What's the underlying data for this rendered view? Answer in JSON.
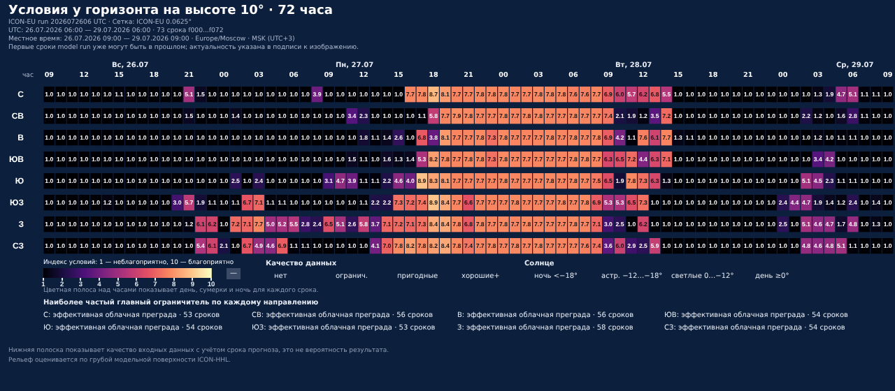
{
  "chart_data": {
    "type": "heatmap",
    "title": "Условия у горизонта на высоте 10° · 72 часа",
    "subtitle": [
      "ICON-EU run 2026072606 UTC · Сетка: ICON-EU 0.0625°",
      "UTC: 26.07.2026 06:00 — 29.07.2026 06:00 · 73 срока f000...f072",
      "Местное время: 26.07.2026 09:00 — 29.07.2026 09:00 · Europe/Moscow · MSK (UTC+3)",
      "Первые сроки model run уже могут быть в прошлом; актуальность указана в подписи к изображению."
    ],
    "xlabel": "час",
    "categories": [
      "09",
      null,
      null,
      "12",
      null,
      null,
      "15",
      null,
      null,
      "18",
      null,
      null,
      "21",
      null,
      null,
      "00",
      null,
      null,
      "03",
      null,
      null,
      "06",
      null,
      null,
      "09",
      null,
      null,
      "12",
      null,
      null,
      "15",
      null,
      null,
      "18",
      null,
      null,
      "21",
      null,
      null,
      "00",
      null,
      null,
      "03",
      null,
      null,
      "06",
      null,
      null,
      "09",
      null,
      null,
      "12",
      null,
      null,
      "15",
      null,
      null,
      "18",
      null,
      null,
      "21",
      null,
      null,
      "00",
      null,
      null,
      "03",
      null,
      null,
      "06",
      null,
      null,
      "09"
    ],
    "y_categories": [
      "С",
      "СВ",
      "В",
      "ЮВ",
      "Ю",
      "ЮЗ",
      "З",
      "СЗ"
    ],
    "cells": [
      [
        1.0,
        1.0,
        1.0,
        1.0,
        1.0,
        1.0,
        1.1,
        1.0,
        1.0,
        1.0,
        1.0,
        1.0,
        5.1,
        1.5,
        1.0,
        1.0,
        1.0,
        1.0,
        1.0,
        1.0,
        1.0,
        1.0,
        1.0,
        3.9,
        1.0,
        1.0,
        1.0,
        1.0,
        1.0,
        1.0,
        1.0,
        7.7,
        7.8,
        8.7,
        8.1,
        7.7,
        7.7,
        7.8,
        7.8,
        7.8,
        7.7,
        7.7,
        7.8,
        7.8,
        7.8,
        7.6,
        7.6,
        7.7,
        6.9,
        6.0,
        5.7,
        6.2,
        6.8,
        5.5,
        1.0,
        1.0,
        1.0,
        1.0,
        1.0,
        1.0,
        1.0,
        1.0,
        1.0,
        1.0,
        1.0,
        1.0,
        1.3,
        1.9,
        4.7,
        5.1,
        1.1,
        1.1,
        1.0
      ],
      [
        1.0,
        1.0,
        1.0,
        1.0,
        1.0,
        1.0,
        1.0,
        1.0,
        1.0,
        1.0,
        1.0,
        1.0,
        1.5,
        1.0,
        1.0,
        1.0,
        1.4,
        1.0,
        1.0,
        1.0,
        1.0,
        1.0,
        1.0,
        1.0,
        1.0,
        1.0,
        3.4,
        2.3,
        1.0,
        1.0,
        1.0,
        1.0,
        1.1,
        5.8,
        7.7,
        7.9,
        7.8,
        7.7,
        7.7,
        7.8,
        7.7,
        7.8,
        7.8,
        7.7,
        7.7,
        7.8,
        7.7,
        7.7,
        7.4,
        2.1,
        1.9,
        1.2,
        3.5,
        7.2,
        1.0,
        1.0,
        1.0,
        1.0,
        1.0,
        1.0,
        1.0,
        1.0,
        1.0,
        1.0,
        1.0,
        2.2,
        1.2,
        1.0,
        1.6,
        2.8,
        1.1,
        1.0,
        1.0
      ],
      [
        1.0,
        1.0,
        1.0,
        1.0,
        1.0,
        1.0,
        1.0,
        1.0,
        1.0,
        1.0,
        1.0,
        1.0,
        1.0,
        1.0,
        1.0,
        1.0,
        1.0,
        1.0,
        1.0,
        1.0,
        1.0,
        1.0,
        1.0,
        1.0,
        1.0,
        1.0,
        1.0,
        1.8,
        1.1,
        1.4,
        2.6,
        1.0,
        6.8,
        3.8,
        8.1,
        7.7,
        7.7,
        7.8,
        7.3,
        7.8,
        7.7,
        7.7,
        7.7,
        7.8,
        7.7,
        7.8,
        7.7,
        7.8,
        6.9,
        4.2,
        1.1,
        7.6,
        6.1,
        7.7,
        1.3,
        1.1,
        1.0,
        1.0,
        1.0,
        1.0,
        1.0,
        1.0,
        1.0,
        1.0,
        1.0,
        1.0,
        1.2,
        1.0,
        1.1,
        1.1,
        1.0,
        1.0,
        1.0
      ],
      [
        1.0,
        1.0,
        1.0,
        1.0,
        1.0,
        1.0,
        1.0,
        1.0,
        1.0,
        1.0,
        1.0,
        1.0,
        1.0,
        1.0,
        1.0,
        1.0,
        1.0,
        1.0,
        1.0,
        1.0,
        1.0,
        1.0,
        1.0,
        1.0,
        1.0,
        1.0,
        1.5,
        1.1,
        1.0,
        1.6,
        1.3,
        1.4,
        5.3,
        8.2,
        7.8,
        7.7,
        7.8,
        7.8,
        7.3,
        7.8,
        7.7,
        7.7,
        7.7,
        7.7,
        7.7,
        7.8,
        7.8,
        7.7,
        6.3,
        6.5,
        7.2,
        4.4,
        6.3,
        7.1,
        1.0,
        1.0,
        1.0,
        1.0,
        1.0,
        1.0,
        1.0,
        1.0,
        1.0,
        1.0,
        1.0,
        1.0,
        3.4,
        4.2,
        1.0,
        1.0,
        1.0,
        1.0,
        1.0
      ],
      [
        1.0,
        1.0,
        1.0,
        1.0,
        1.0,
        1.0,
        1.0,
        1.0,
        1.0,
        1.0,
        1.0,
        1.0,
        1.0,
        1.0,
        1.0,
        1.0,
        2.5,
        1.0,
        2.4,
        1.0,
        1.0,
        1.0,
        1.0,
        1.0,
        3.1,
        4.7,
        3.9,
        1.1,
        1.1,
        2.2,
        4.6,
        4.0,
        8.9,
        8.3,
        8.1,
        7.7,
        7.7,
        7.7,
        7.7,
        7.8,
        7.7,
        7.7,
        7.7,
        7.8,
        7.7,
        7.8,
        7.7,
        7.5,
        6.5,
        1.9,
        7.8,
        7.3,
        6.3,
        1.3,
        1.0,
        1.0,
        1.0,
        1.0,
        1.0,
        1.0,
        1.0,
        1.0,
        1.0,
        1.0,
        1.0,
        5.1,
        4.5,
        2.3,
        1.1,
        1.1,
        1.0,
        1.0,
        1.0
      ],
      [
        1.0,
        1.0,
        1.0,
        1.0,
        1.0,
        1.2,
        1.0,
        1.0,
        1.0,
        1.0,
        1.0,
        3.0,
        5.7,
        1.9,
        1.1,
        1.0,
        1.1,
        6.7,
        7.1,
        1.1,
        1.1,
        1.0,
        1.0,
        1.0,
        1.0,
        1.0,
        1.0,
        1.1,
        2.2,
        2.2,
        7.3,
        7.2,
        7.4,
        8.9,
        8.4,
        7.7,
        6.6,
        7.7,
        7.7,
        7.7,
        7.8,
        7.7,
        7.7,
        7.7,
        7.8,
        7.7,
        7.8,
        6.9,
        5.3,
        5.3,
        6.5,
        7.3,
        1.0,
        1.0,
        1.0,
        1.0,
        1.0,
        1.0,
        1.0,
        1.0,
        1.0,
        1.0,
        1.0,
        2.4,
        4.4,
        4.7,
        1.9,
        1.4,
        1.2,
        2.4,
        1.0,
        1.4,
        1.0
      ],
      [
        1.0,
        1.0,
        1.0,
        1.0,
        1.0,
        1.0,
        1.0,
        1.0,
        1.0,
        1.0,
        1.0,
        1.0,
        1.2,
        6.1,
        6.2,
        1.0,
        7.2,
        7.1,
        7.7,
        5.0,
        5.2,
        5.5,
        2.8,
        2.4,
        6.5,
        5.1,
        2.6,
        5.8,
        3.7,
        7.1,
        7.2,
        7.1,
        7.3,
        8.4,
        8.4,
        7.8,
        6.8,
        7.8,
        7.7,
        7.8,
        7.7,
        7.8,
        7.7,
        7.7,
        7.7,
        7.8,
        7.7,
        7.1,
        3.0,
        2.5,
        1.0,
        6.2,
        1.0,
        1.0,
        1.0,
        1.0,
        1.0,
        1.0,
        1.0,
        1.0,
        1.0,
        1.0,
        1.0,
        2.5,
        1.0,
        5.1,
        4.6,
        4.7,
        1.7,
        4.8,
        1.0,
        1.3,
        1.0
      ],
      [
        1.0,
        1.0,
        1.0,
        1.0,
        1.0,
        1.0,
        1.0,
        1.0,
        1.0,
        1.0,
        1.0,
        1.0,
        1.0,
        5.4,
        6.1,
        2.1,
        1.0,
        6.7,
        4.9,
        4.6,
        6.9,
        1.1,
        1.1,
        1.0,
        1.0,
        1.0,
        1.0,
        1.0,
        4.1,
        7.0,
        7.8,
        8.2,
        7.8,
        8.2,
        8.4,
        7.8,
        7.4,
        7.7,
        7.8,
        7.7,
        7.8,
        7.7,
        7.8,
        7.7,
        7.7,
        7.7,
        7.6,
        7.4,
        3.6,
        6.0,
        2.9,
        2.5,
        5.9,
        1.0,
        1.0,
        1.0,
        1.0,
        1.0,
        1.0,
        1.0,
        1.0,
        1.0,
        1.0,
        1.0,
        1.0,
        4.8,
        4.6,
        4.8,
        5.1,
        1.1,
        1.0,
        1.0,
        1.0
      ]
    ],
    "cell_labels": [
      [
        "1.0",
        "1.0",
        "1.0",
        "1.0",
        "1.0",
        "1.0",
        "1.1",
        "1.0",
        "1.0",
        "1.0",
        "1.0",
        "1.0",
        "5.1",
        "1.5",
        "1.0",
        "1.0",
        "1.0",
        "1.0",
        "1.0",
        "1.0",
        "1.0",
        "1.0",
        "1.0",
        "3.9",
        "1.0",
        "1.0",
        "1.0",
        "1.0",
        "1.0",
        "1.0",
        "1.0",
        "7.7",
        "7.8",
        "8.7",
        "8.1",
        "7.7",
        "7.7",
        "7.8",
        "7.8",
        "7.8",
        "7.7",
        "7.7",
        "7.8",
        "7.8",
        "7.8",
        "7.6",
        "7.6",
        "7.7",
        "6.9",
        "6.0",
        "5.7",
        "6.2",
        "6.8",
        "5.5",
        "1.0",
        "1.0",
        "1.0",
        "1.0",
        "1.0",
        "1.0",
        "1.0",
        "1.0",
        "1.0",
        "1.0",
        "1.0",
        "1.0",
        "1.3",
        "1.9",
        "4.7",
        "5.1",
        "1.1",
        "1.1",
        "1.0"
      ],
      [
        "1.0",
        "1.0",
        "1.0",
        "1.0",
        "1.0",
        "1.0",
        "1.0",
        "1.0",
        "1.0",
        "1.0",
        "1.0",
        "1.0",
        "1.5",
        "1.0",
        "1.0",
        "1.0",
        "1.4",
        "1.0",
        "1.0",
        "1.0",
        "1.0",
        "1.0",
        "1.0",
        "1.0",
        "1.0",
        "1.0",
        "3.4",
        "2.3",
        "1.0",
        "1.0",
        "1.0",
        "1.0",
        "1.1",
        "5.8",
        "7.7",
        "7.9",
        "7.8",
        "7.7",
        "7.7",
        "7.8",
        "7.7",
        "7.8",
        "7.8",
        "7.7",
        "7.7",
        "7.8",
        "7.7",
        "7.7",
        "7.4",
        "2.1",
        "1.9",
        "1.2",
        "3.5",
        "7.2",
        "1.0",
        "1.0",
        "1.0",
        "1.0",
        "1.0",
        "1.0",
        "1.0",
        "1.0",
        "1.0",
        "1.0",
        "1.0",
        "2.2",
        "1.2",
        "1.0",
        "1.6",
        "2.8",
        "1.1",
        "1.0",
        "1.0"
      ],
      [
        "1.0",
        "1.0",
        "1.0",
        "1.0",
        "1.0",
        "1.0",
        "1.0",
        "1.0",
        "1.0",
        "1.0",
        "1.0",
        "1.0",
        "1.0",
        "1.0",
        "1.0",
        "1.0",
        "1.0",
        "1.0",
        "1.0",
        "1.0",
        "1.0",
        "1.0",
        "1.0",
        "1.0",
        "1.0",
        "1.0",
        "1.0",
        "1.8",
        "1.1",
        "1.4",
        "2.6",
        "1.0",
        "6.8",
        "3.8",
        "8.1",
        "7.7",
        "7.7",
        "7.8",
        "7.3",
        "7.8",
        "7.7",
        "7.7",
        "7.7",
        "7.8",
        "7.7",
        "7.8",
        "7.7",
        "7.8",
        "6.9",
        "4.2",
        "1.1",
        "7.6",
        "6.1",
        "7.7",
        "1.3",
        "1.1",
        "1.0",
        "1.0",
        "1.0",
        "1.0",
        "1.0",
        "1.0",
        "1.0",
        "1.0",
        "1.0",
        "1.0",
        "1.2",
        "1.0",
        "1.1",
        "1.1",
        "1.0",
        "1.0",
        "1.0"
      ],
      [
        "1.0",
        "1.0",
        "1.0",
        "1.0",
        "1.0",
        "1.0",
        "1.0",
        "1.0",
        "1.0",
        "1.0",
        "1.0",
        "1.0",
        "1.0",
        "1.0",
        "1.0",
        "1.0",
        "1.0",
        "1.0",
        "1.0",
        "1.0",
        "1.0",
        "1.0",
        "1.0",
        "1.0",
        "1.0",
        "1.0",
        "1.5",
        "1.1",
        "1.0",
        "1.6",
        "1.3",
        "1.4",
        "5.3",
        "8.2",
        "7.8",
        "7.7",
        "7.8",
        "7.8",
        "7.3",
        "7.8",
        "7.7",
        "7.7",
        "7.7",
        "7.7",
        "7.7",
        "7.8",
        "7.8",
        "7.7",
        "6.3",
        "6.5",
        "7.2",
        "4.4",
        "6.3",
        "7.1",
        "1.0",
        "1.0",
        "1.0",
        "1.0",
        "1.0",
        "1.0",
        "1.0",
        "1.0",
        "1.0",
        "1.0",
        "1.0",
        "1.0",
        "3.4",
        "4.2",
        "1.0",
        "1.0",
        "1.0",
        "1.0",
        "1.0"
      ],
      [
        "1.0",
        "1.0",
        "1.0",
        "1.0",
        "1.0",
        "1.0",
        "1.0",
        "1.0",
        "1.0",
        "1.0",
        "1.0",
        "1.0",
        "1.0",
        "1.0",
        "1.0",
        "1.0",
        "2.5",
        "1.0",
        "2.4",
        "1.0",
        "1.0",
        "1.0",
        "1.0",
        "1.0",
        "3.1",
        "4.7",
        "3.9",
        "1.1",
        "1.1",
        "2.2",
        "4.6",
        "4.0",
        "8.9",
        "8.3",
        "8.1",
        "7.7",
        "7.7",
        "7.7",
        "7.7",
        "7.8",
        "7.7",
        "7.7",
        "7.7",
        "7.8",
        "7.7",
        "7.8",
        "7.7",
        "7.5",
        "6.5",
        "1.9",
        "7.8",
        "7.3",
        "6.3",
        "1.3",
        "1.0",
        "1.0",
        "1.0",
        "1.0",
        "1.0",
        "1.0",
        "1.0",
        "1.0",
        "1.0",
        "1.0",
        "1.0",
        "5.1",
        "4.5",
        "2.3",
        "1.1",
        "1.1",
        "1.0",
        "1.0",
        "1.0"
      ],
      [
        "1.0",
        "1.0",
        "1.0",
        "1.0",
        "1.0",
        "1.2",
        "1.0",
        "1.0",
        "1.0",
        "1.0",
        "1.0",
        "3.0",
        "5.7",
        "1.9",
        "1.1",
        "1.0",
        "1.1",
        "6.7",
        "7.1",
        "1.1",
        "1.1",
        "1.0",
        "1.0",
        "1.0",
        "1.0",
        "1.0",
        "1.0",
        "1.1",
        "2.2",
        "2.2",
        "7.3",
        "7.2",
        "7.4",
        "8.9",
        "8.4",
        "7.7",
        "6.6",
        "7.7",
        "7.7",
        "7.7",
        "7.8",
        "7.7",
        "7.7",
        "7.7",
        "7.8",
        "7.7",
        "7.8",
        "6.9",
        "5.3",
        "5.3",
        "6.5",
        "7.3",
        "1.0",
        "1.0",
        "1.0",
        "1.0",
        "1.0",
        "1.0",
        "1.0",
        "1.0",
        "1.0",
        "1.0",
        "1.0",
        "2.4",
        "4.4",
        "4.7",
        "1.9",
        "1.4",
        "1.2",
        "2.4",
        "1.0",
        "1.4",
        "1.0"
      ],
      [
        "1.0",
        "1.0",
        "1.0",
        "1.0",
        "1.0",
        "1.0",
        "1.0",
        "1.0",
        "1.0",
        "1.0",
        "1.0",
        "1.0",
        "1.2",
        "6.1",
        "6.2",
        "1.0",
        "7.2",
        "7.1",
        "7.7",
        "5.0",
        "5.2",
        "5.5",
        "2.8",
        "2.4",
        "6.5",
        "5.1",
        "2.6",
        "5.8",
        "3.7",
        "7.1",
        "7.2",
        "7.1",
        "7.3",
        "8.4",
        "8.4",
        "7.8",
        "6.8",
        "7.8",
        "7.7",
        "7.8",
        "7.7",
        "7.8",
        "7.7",
        "7.7",
        "7.7",
        "7.8",
        "7.7",
        "7.1",
        "3.0",
        "2.5",
        "1.0",
        "6.2",
        "1.0",
        "1.0",
        "1.0",
        "1.0",
        "1.0",
        "1.0",
        "1.0",
        "1.0",
        "1.0",
        "1.0",
        "1.0",
        "2.5",
        "1.0",
        "5.1",
        "4.6",
        "4.7",
        "1.7",
        "4.8",
        "1.0",
        "1.3",
        "1.0"
      ],
      [
        "1.0",
        "1.0",
        "1.0",
        "1.0",
        "1.0",
        "1.0",
        "1.0",
        "1.0",
        "1.0",
        "1.0",
        "1.0",
        "1.0",
        "1.0",
        "5.4",
        "6.1",
        "2.1",
        "1.0",
        "6.7",
        "4.9",
        "4.6",
        "6.9",
        "1.1",
        "1.1",
        "1.0",
        "1.0",
        "1.0",
        "1.0",
        "1.0",
        "4.1",
        "7.0",
        "7.8",
        "8.2",
        "7.8",
        "8.2",
        "8.4",
        "7.8",
        "7.4",
        "7.7",
        "7.8",
        "7.7",
        "7.8",
        "7.7",
        "7.8",
        "7.7",
        "7.7",
        "7.7",
        "7.6",
        "7.4",
        "3.6",
        "6.0",
        "2.9",
        "2.5",
        "5.9",
        "1.0",
        "1.0",
        "1.0",
        "1.0",
        "1.0",
        "1.0",
        "1.0",
        "1.0",
        "1.0",
        "1.0",
        "1.0",
        "1.0",
        "4.8",
        "4.6",
        "4.8",
        "5.1",
        "1.1",
        "1.0",
        "1.0",
        "1.0"
      ]
    ],
    "clim": [
      1,
      10
    ],
    "cticks": [
      1,
      2,
      3,
      4,
      5,
      6,
      7,
      8,
      9,
      10
    ],
    "clabel": "Индекс условий: 1 — неблагоприятно, 10 — благоприятно",
    "annotations": [
      "Вс, 26.07",
      "Пн, 27.07",
      "Вт, 28.07",
      "Ср, 29.07",
      "—",
      "Качество данных",
      "нет",
      "огранич.",
      "пригодные",
      "хорошие+",
      "Солнце",
      "ночь <−18°",
      "астр. −12…−18°",
      "светлые 0…−12°",
      "день ≥0°",
      "Цветная полоса над часами показывает день, сумерки и ночь для каждого срока.",
      "Наиболее частый главный ограничитель по каждому направлению",
      "С: эффективная облачная преграда · 53 сроков",
      "СВ: эффективная облачная преграда · 56 сроков",
      "В: эффективная облачная преграда · 56 сроков",
      "ЮВ: эффективная облачная преграда · 54 сроков",
      "Ю: эффективная облачная преграда · 54 сроков",
      "ЮЗ: эффективная облачная преграда · 53 сроков",
      "З: эффективная облачная преграда · 58 сроков",
      "СЗ: эффективная облачная преграда · 54 сроков",
      "Нижняя полоска показывает качество входных данных с учётом срока прогноза, это не вероятность результата.",
      "Рельеф оценивается по грубой модельной поверхности ICON-HHL."
    ]
  }
}
